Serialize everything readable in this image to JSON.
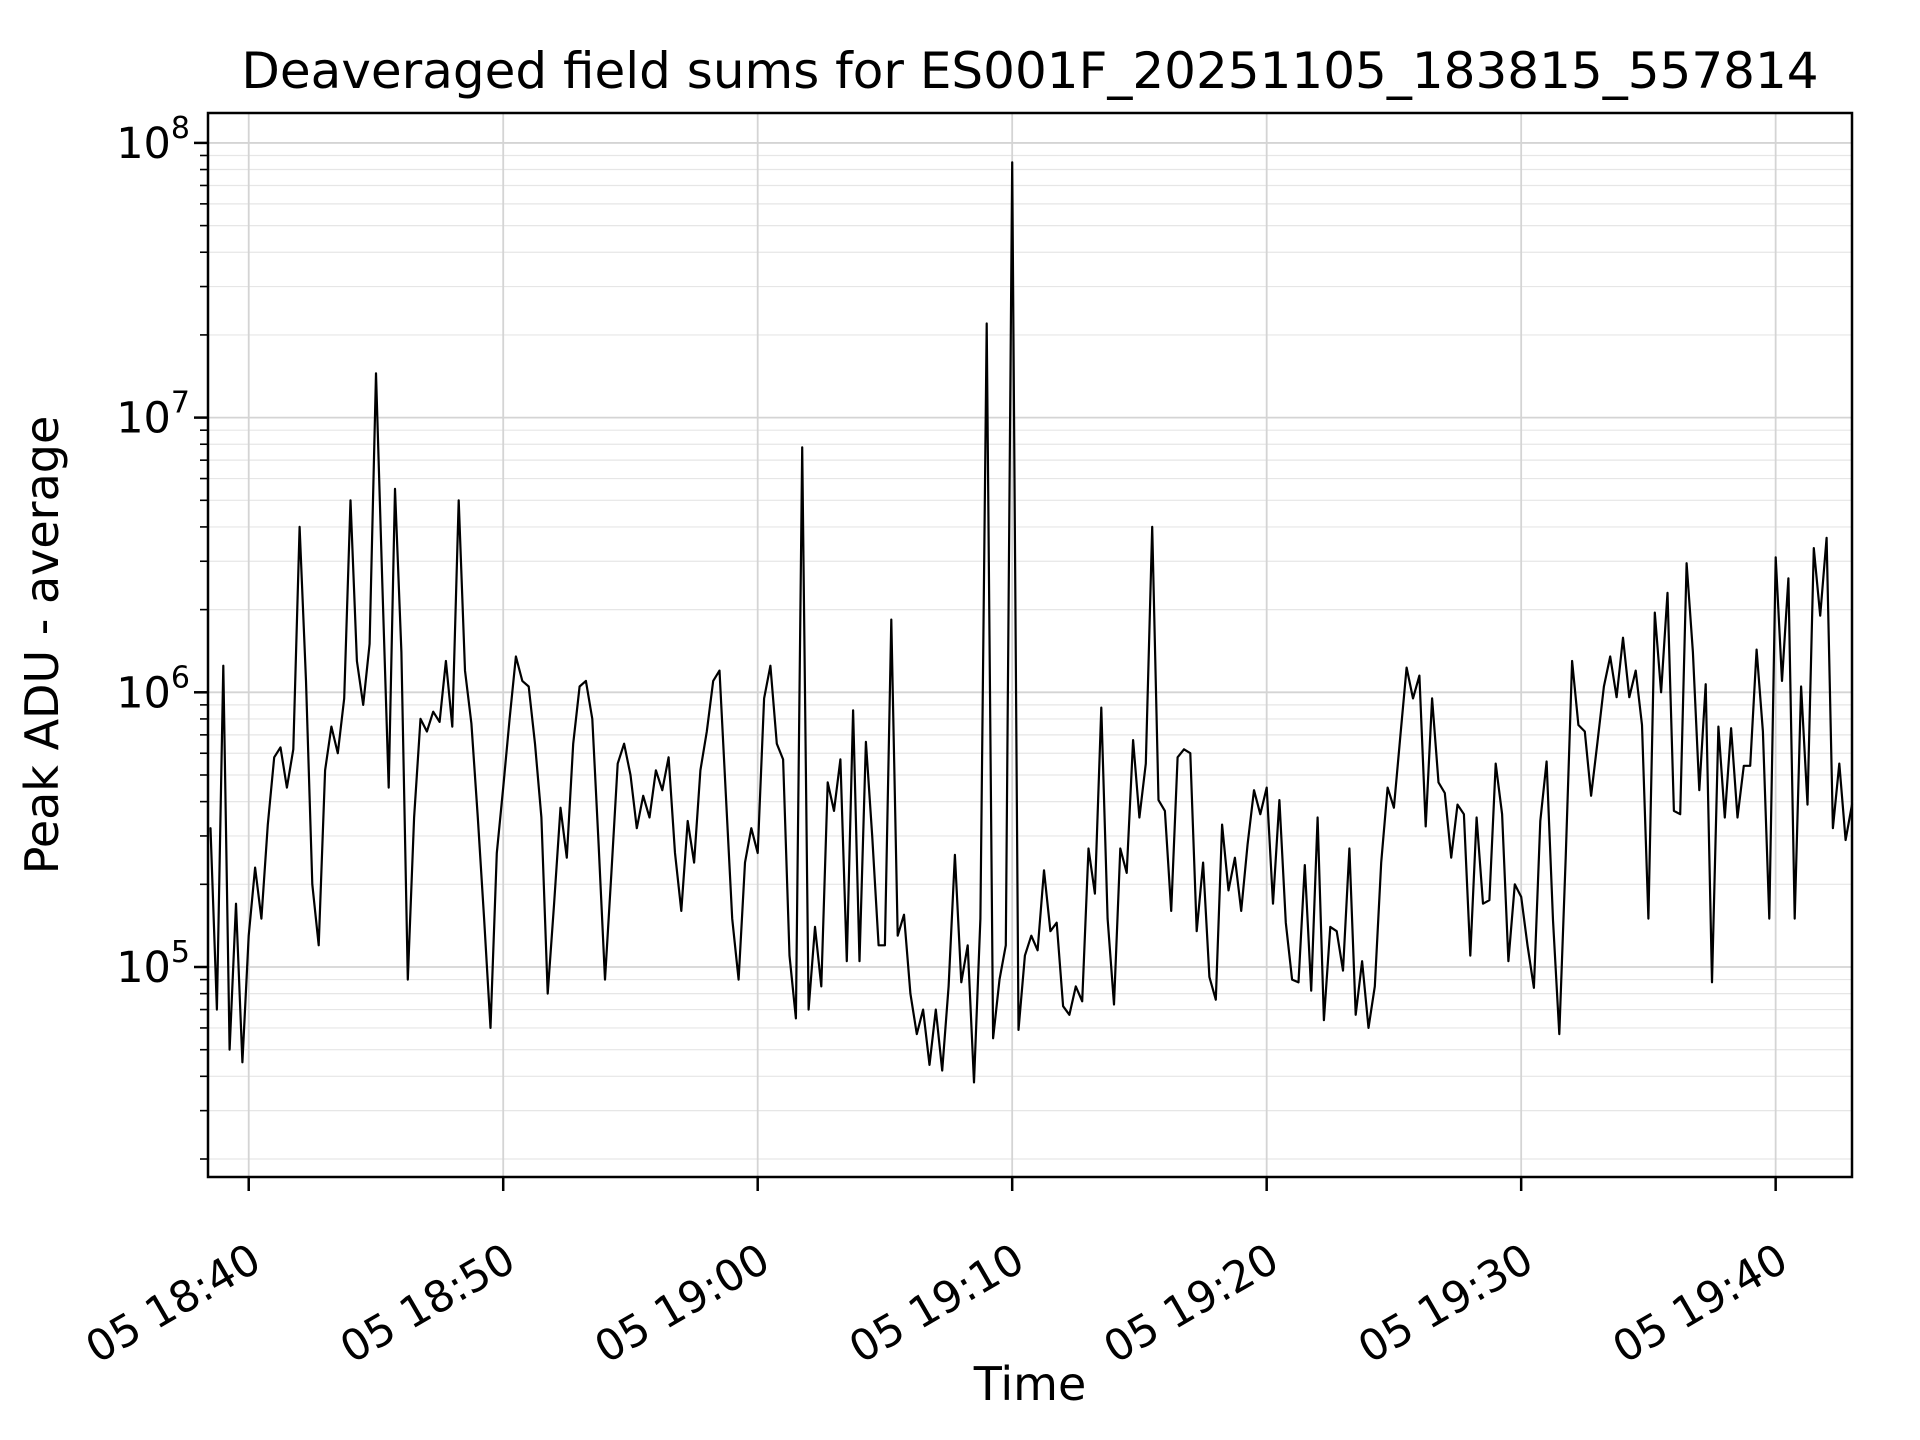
{
  "chart_data": {
    "type": "line",
    "title": "Deaveraged field sums for ES001F_20251105_183815_557814",
    "xlabel": "Time",
    "ylabel": "Peak ADU - average",
    "grid": true,
    "legend": "none",
    "yscale": "log",
    "ylim": [
      17200,
      128500000
    ],
    "y_major_ticks": [
      100000,
      1000000,
      10000000,
      100000000
    ],
    "y_tick_labels": [
      {
        "base": "10",
        "exp": "5"
      },
      {
        "base": "10",
        "exp": "6"
      },
      {
        "base": "10",
        "exp": "7"
      },
      {
        "base": "10",
        "exp": "8"
      }
    ],
    "xlim_minutes": [
      38.4,
      103.0
    ],
    "x_tick_minutes": [
      40,
      50,
      60,
      70,
      80,
      90,
      100
    ],
    "x_tick_labels": [
      "05 18:40",
      "05 18:50",
      "05 19:00",
      "05 19:10",
      "05 19:20",
      "05 19:30",
      "05 19:40"
    ],
    "line_color": "#000000",
    "grid_major_color": "#d4d4d4",
    "grid_minor_color": "#e6e6e6",
    "series": [
      {
        "name": "deaveraged-field-sums",
        "start_minute": 38.5,
        "step_minute": 0.25,
        "values": [
          320000.0,
          70000.0,
          1250000.0,
          50000.0,
          170000.0,
          45000.0,
          130000.0,
          230000.0,
          150000.0,
          330000.0,
          580000.0,
          630000.0,
          450000.0,
          620000.0,
          4000000.0,
          1100000.0,
          200000.0,
          120000.0,
          520000.0,
          750000.0,
          600000.0,
          950000.0,
          5000000.0,
          1300000.0,
          900000.0,
          1500000.0,
          14500000.0,
          2500000.0,
          450000.0,
          5500000.0,
          1400000.0,
          90000.0,
          350000.0,
          800000.0,
          720000.0,
          850000.0,
          780000.0,
          1300000.0,
          750000.0,
          5000000.0,
          1200000.0,
          770000.0,
          350000.0,
          150000.0,
          60000.0,
          260000.0,
          450000.0,
          800000.0,
          1350000.0,
          1100000.0,
          1050000.0,
          650000.0,
          350000.0,
          80000.0,
          170000.0,
          380000.0,
          250000.0,
          650000.0,
          1050000.0,
          1100000.0,
          800000.0,
          280000.0,
          90000.0,
          220000.0,
          550000.0,
          650000.0,
          500000.0,
          320000.0,
          420000.0,
          350000.0,
          520000.0,
          440000.0,
          580000.0,
          260000.0,
          160000.0,
          340000.0,
          240000.0,
          520000.0,
          720000.0,
          1100000.0,
          1200000.0,
          420000.0,
          150000.0,
          90000.0,
          240000.0,
          320000.0,
          260000.0,
          950000.0,
          1250000.0,
          650000.0,
          570000.0,
          110000.0,
          65000.0,
          7800000.0,
          70000.0,
          140000.0,
          85000.0,
          470000.0,
          370000.0,
          570000.0,
          105000.0,
          860000.0,
          105000.0,
          660000.0,
          300000.0,
          120000.0,
          120000.0,
          1840000.0,
          130000.0,
          155000.0,
          80000.0,
          57000.0,
          70000.0,
          44000.0,
          70000.0,
          42000.0,
          85000.0,
          256000.0,
          88000.0,
          120000.0,
          38000.0,
          150000.0,
          22000000.0,
          55000.0,
          90000.0,
          120000.0,
          85000000.0,
          59000.0,
          110000.0,
          130000.0,
          115000.0,
          225000.0,
          135000.0,
          145000.0,
          72000.0,
          67000.0,
          85000.0,
          75000.0,
          270000.0,
          185000.0,
          880000.0,
          150000.0,
          73000.0,
          270000.0,
          220000.0,
          670000.0,
          350000.0,
          550000.0,
          4000000.0,
          405000.0,
          370000.0,
          160000.0,
          580000.0,
          620000.0,
          600000.0,
          135000.0,
          240000.0,
          92000.0,
          76000.0,
          330000.0,
          190000.0,
          250000.0,
          160000.0,
          280000.0,
          440000.0,
          360000.0,
          450000.0,
          170000.0,
          405000.0,
          145000.0,
          90000.0,
          88000.0,
          235000.0,
          82000.0,
          350000.0,
          64000.0,
          140000.0,
          135000.0,
          97000.0,
          270000.0,
          67000.0,
          105000.0,
          60000.0,
          85000.0,
          240000.0,
          450000.0,
          380000.0,
          690000.0,
          1230000.0,
          950000.0,
          1150000.0,
          325000.0,
          950000.0,
          470000.0,
          430000.0,
          250000.0,
          390000.0,
          360000.0,
          110000.0,
          350000.0,
          170000.0,
          175000.0,
          550000.0,
          360000.0,
          105000.0,
          200000.0,
          180000.0,
          120000.0,
          84000.0,
          340000.0,
          560000.0,
          148000.0,
          57000.0,
          250000.0,
          1300000.0,
          760000.0,
          720000.0,
          420000.0,
          660000.0,
          1050000.0,
          1350000.0,
          960000.0,
          1580000.0,
          960000.0,
          1200000.0,
          760000.0,
          150000.0,
          1950000.0,
          1000000.0,
          2300000.0,
          370000.0,
          360000.0,
          2950000.0,
          1400000.0,
          440000.0,
          1070000.0,
          88000.0,
          750000.0,
          350000.0,
          740000.0,
          350000.0,
          540000.0,
          540000.0,
          1430000.0,
          720000.0,
          150000.0,
          3100000.0,
          1100000.0,
          2600000.0,
          150000.0,
          1050000.0,
          390000.0,
          3350000.0,
          1900000.0,
          3650000.0,
          320000.0,
          550000.0,
          290000.0,
          390000.0
        ]
      }
    ]
  }
}
